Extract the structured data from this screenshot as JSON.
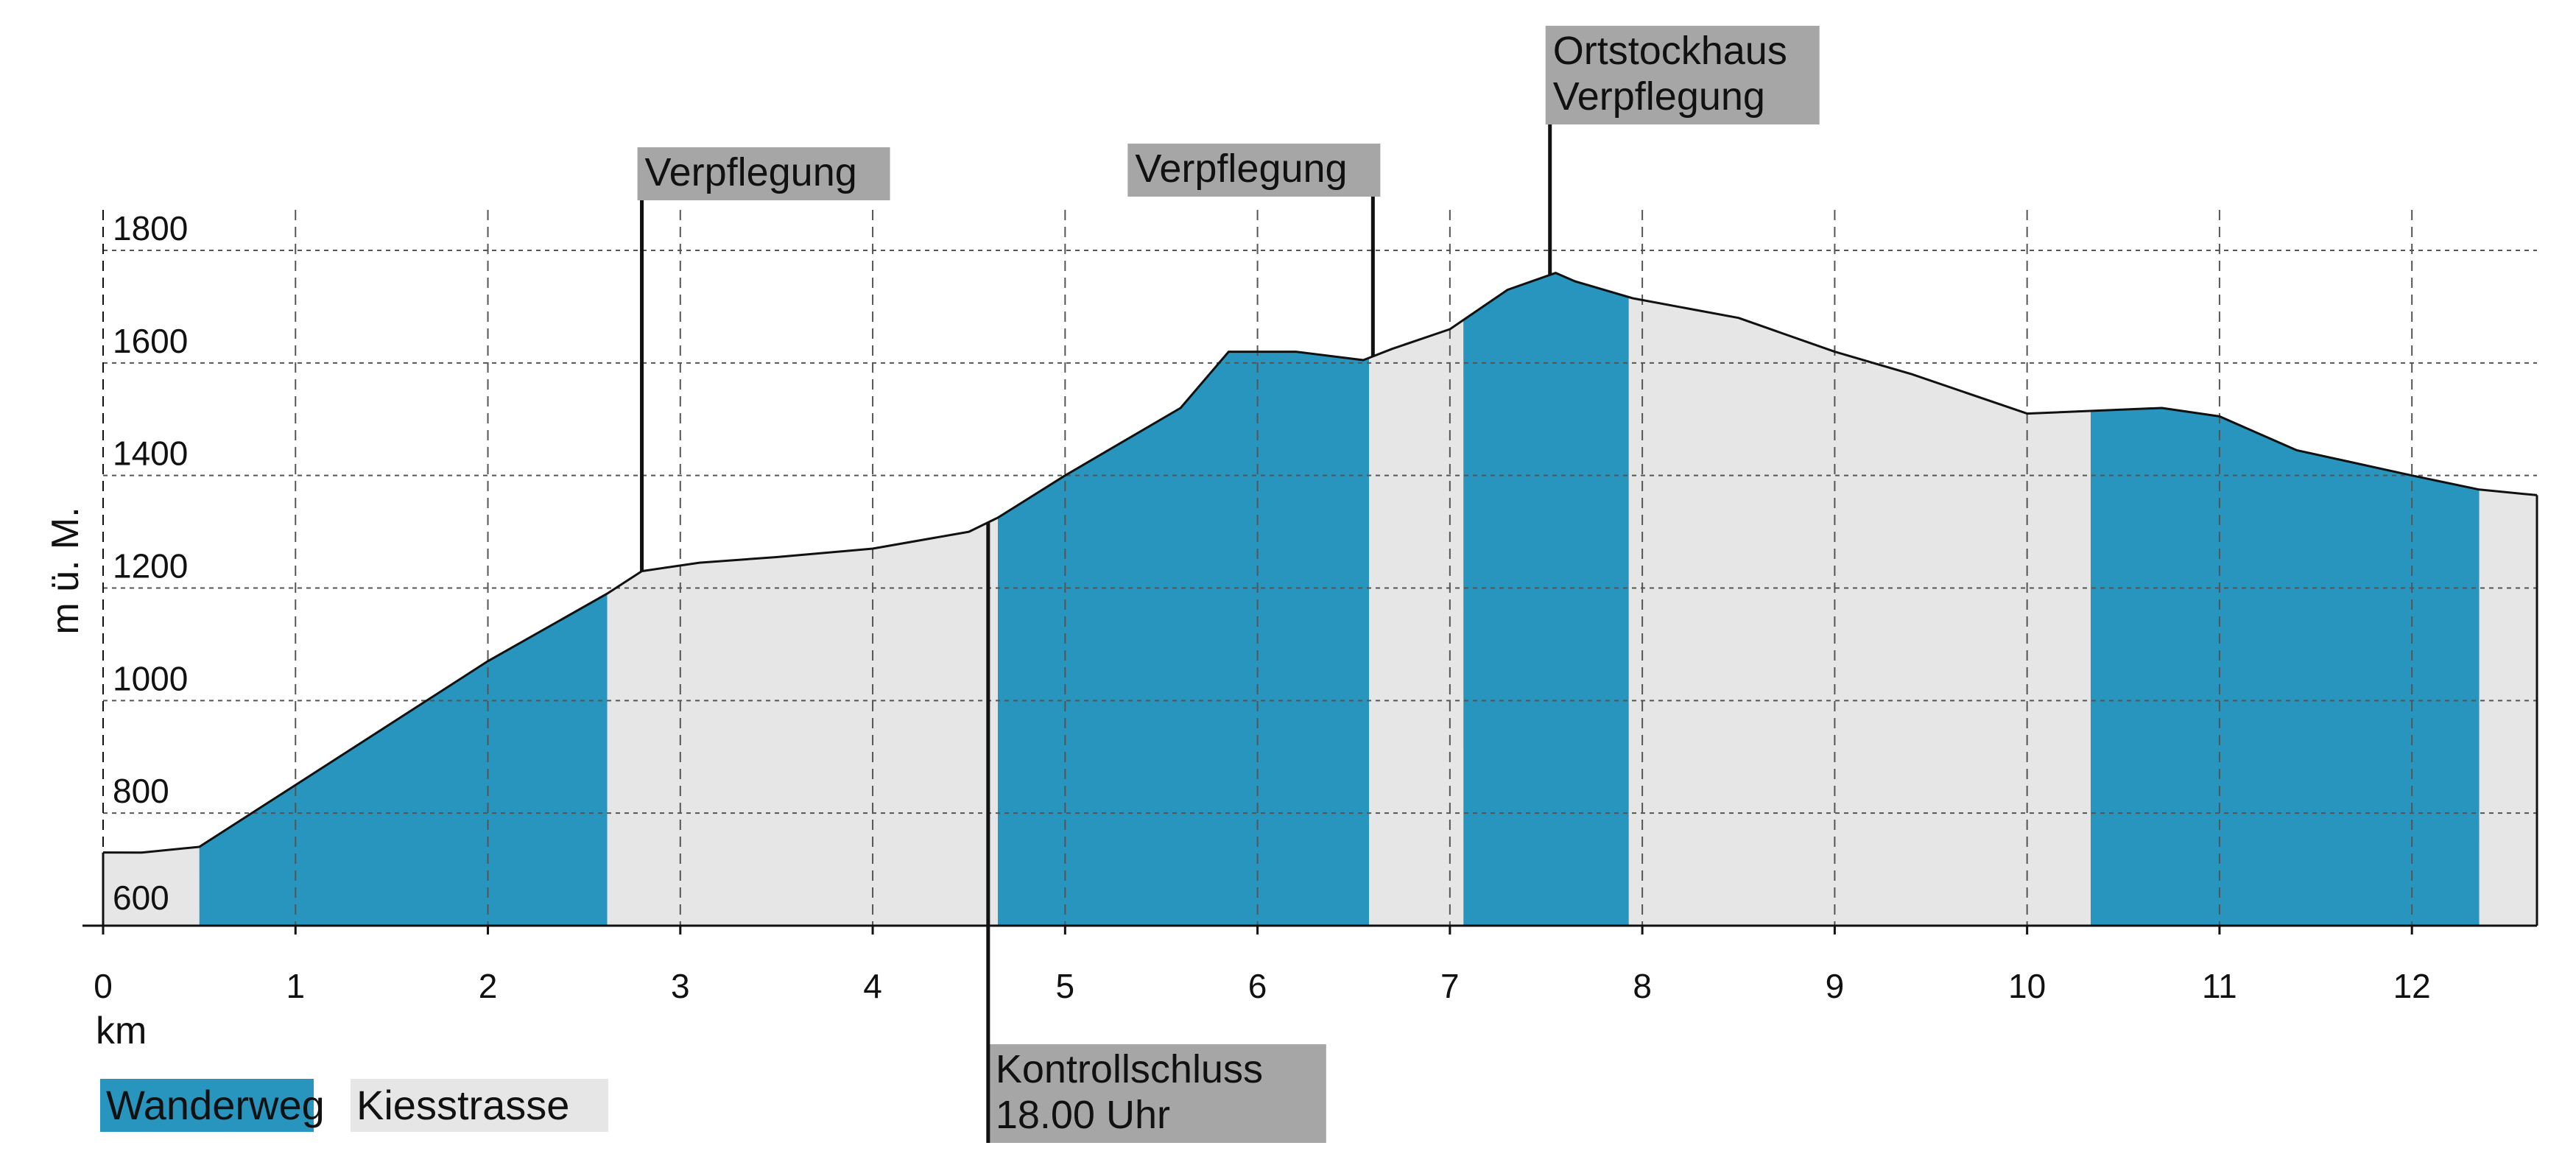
{
  "chart_data": {
    "type": "area",
    "xlabel": "km",
    "ylabel": "m ü. M.",
    "xlim": [
      0,
      12.65
    ],
    "ylim": [
      600,
      1800
    ],
    "xticks": [
      "0",
      "1",
      "2",
      "3",
      "4",
      "5",
      "6",
      "7",
      "8",
      "9",
      "10",
      "11",
      "12"
    ],
    "yticks": [
      "600",
      "800",
      "1000",
      "1200",
      "1400",
      "1600",
      "1800"
    ],
    "grid": true,
    "legend_position": "bottom-left",
    "profile": {
      "x": [
        0,
        0.2,
        0.5,
        1.0,
        1.5,
        2.0,
        2.62,
        2.8,
        3.1,
        3.5,
        4.0,
        4.5,
        4.65,
        5.0,
        5.6,
        5.85,
        6.2,
        6.55,
        6.7,
        7.0,
        7.3,
        7.55,
        7.65,
        7.95,
        8.5,
        9.0,
        9.4,
        10.0,
        10.7,
        11.0,
        11.4,
        12.0,
        12.35,
        12.65
      ],
      "y": [
        730,
        730,
        740,
        850,
        960,
        1070,
        1190,
        1230,
        1245,
        1255,
        1270,
        1300,
        1325,
        1400,
        1520,
        1620,
        1620,
        1605,
        1625,
        1660,
        1730,
        1760,
        1745,
        1715,
        1680,
        1620,
        1580,
        1510,
        1520,
        1505,
        1445,
        1400,
        1375,
        1365
      ]
    },
    "series": [
      {
        "name": "Wanderweg",
        "color": "#2795be",
        "segments": [
          [
            0.5,
            2.62
          ],
          [
            4.65,
            6.58
          ],
          [
            7.07,
            7.93
          ],
          [
            10.33,
            12.35
          ]
        ]
      },
      {
        "name": "Kiesstrasse",
        "color": "#e6e6e6",
        "segments": [
          [
            0,
            0.5
          ],
          [
            2.62,
            4.65
          ],
          [
            6.58,
            7.07
          ],
          [
            7.93,
            10.33
          ],
          [
            12.35,
            12.65
          ]
        ]
      }
    ],
    "annotations": [
      {
        "x": 2.8,
        "position": "above",
        "lines": [
          "Verpflegung"
        ]
      },
      {
        "x": 6.6,
        "position": "above",
        "lines": [
          "Verpflegung"
        ]
      },
      {
        "x": 7.52,
        "position": "above",
        "lines": [
          "Ortstockhaus",
          "Verpflegung"
        ]
      },
      {
        "x": 4.6,
        "position": "below",
        "lines": [
          "Kontrollschluss",
          "18.00 Uhr"
        ]
      }
    ]
  }
}
